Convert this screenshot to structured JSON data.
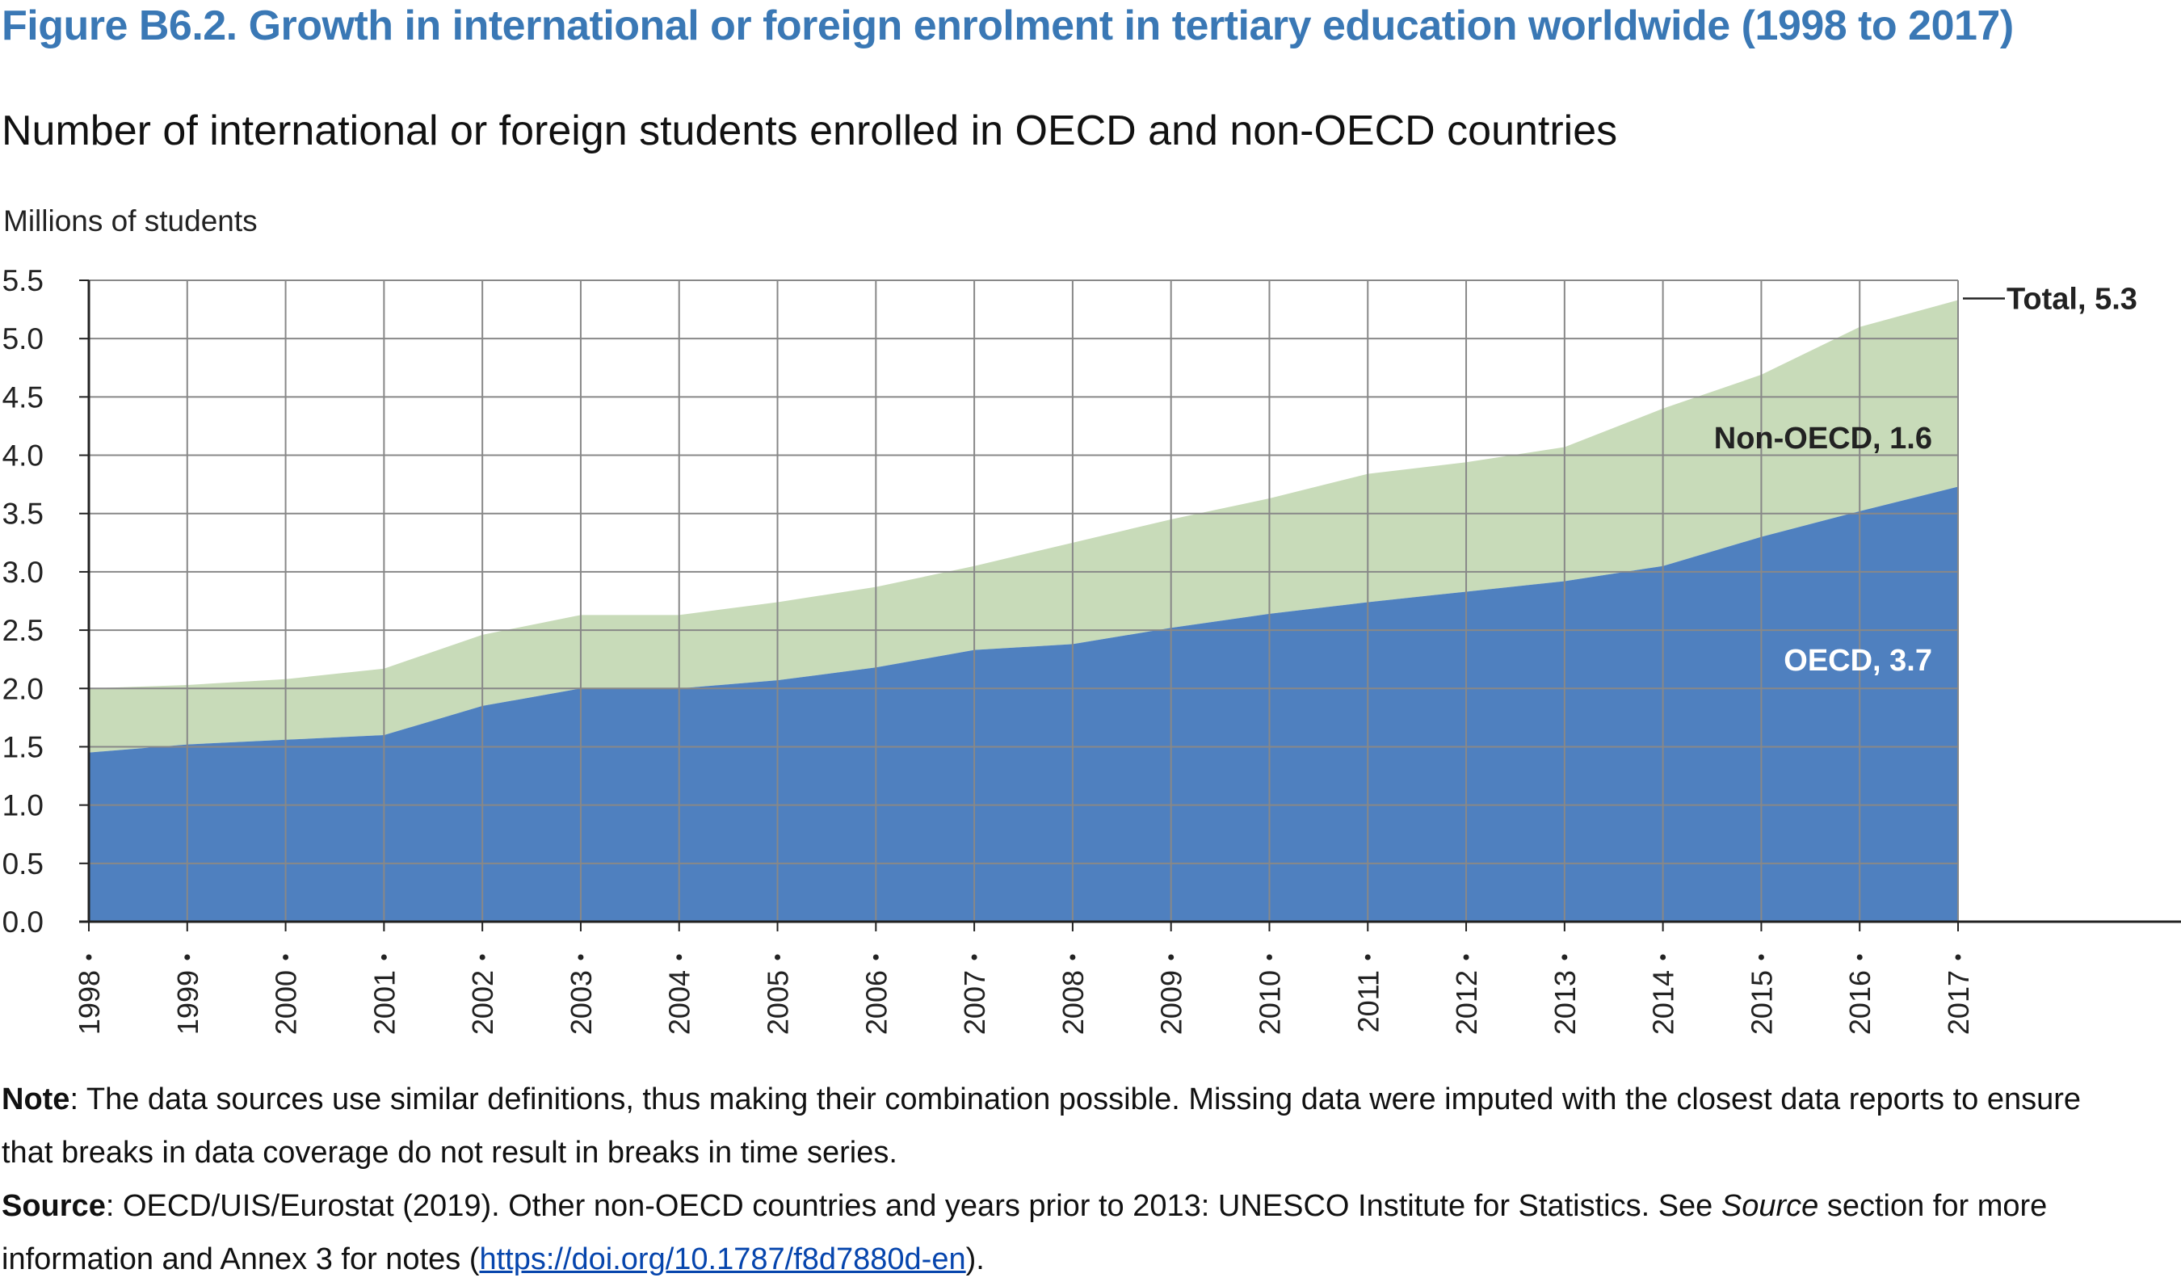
{
  "title": "Figure B6.2. Growth in international or foreign enrolment in tertiary education worldwide (1998 to 2017)",
  "subtitle": "Number of international or foreign students enrolled in OECD and non-OECD countries",
  "note": {
    "label": "Note",
    "line1": ": The data sources use similar definitions, thus making their combination possible. Missing data were imputed with the closest data reports to ensure",
    "line2": "that breaks in data coverage do not result in breaks in time series."
  },
  "source": {
    "label": "Source",
    "line1_pre": ": OECD/UIS/Eurostat (2019). Other non-OECD countries and years prior to 2013: UNESCO Institute for Statistics. See ",
    "line1_italic": "Source",
    "line1_post": " section for more",
    "line2_pre": "information and Annex 3 for notes (",
    "link": "https://doi.org/10.1787/f8d7880d-en",
    "line2_post": ")."
  },
  "colors": {
    "title": "#3a78b5",
    "oecd": "#4f80bf",
    "non_oecd": "#c8dbb9",
    "grid": "#888888",
    "axis": "#222222"
  },
  "chart_data": {
    "type": "area",
    "stacked": true,
    "ylabel": "Millions of students",
    "xlabel": "",
    "ylim": [
      0,
      5.5
    ],
    "yticks": [
      "0.0",
      "0.5",
      "1.0",
      "1.5",
      "2.0",
      "2.5",
      "3.0",
      "3.5",
      "4.0",
      "4.5",
      "5.0",
      "5.5"
    ],
    "categories": [
      "1998",
      "1999",
      "2000",
      "2001",
      "2002",
      "2003",
      "2004",
      "2005",
      "2006",
      "2007",
      "2008",
      "2009",
      "2010",
      "2011",
      "2012",
      "2013",
      "2014",
      "2015",
      "2016",
      "2017"
    ],
    "series": [
      {
        "name": "OECD",
        "values": [
          1.45,
          1.52,
          1.56,
          1.6,
          1.85,
          2.0,
          2.0,
          2.07,
          2.18,
          2.33,
          2.38,
          2.52,
          2.64,
          2.74,
          2.83,
          2.92,
          3.05,
          3.3,
          3.52,
          3.73
        ]
      },
      {
        "name": "Non-OECD",
        "values": [
          0.55,
          0.51,
          0.52,
          0.57,
          0.61,
          0.63,
          0.63,
          0.67,
          0.69,
          0.72,
          0.87,
          0.93,
          0.99,
          1.1,
          1.11,
          1.15,
          1.35,
          1.39,
          1.58,
          1.6
        ]
      }
    ],
    "labels": {
      "total": "Total, 5.3",
      "non_oecd": "Non-OECD, 1.6",
      "oecd": "OECD, 3.7"
    }
  }
}
